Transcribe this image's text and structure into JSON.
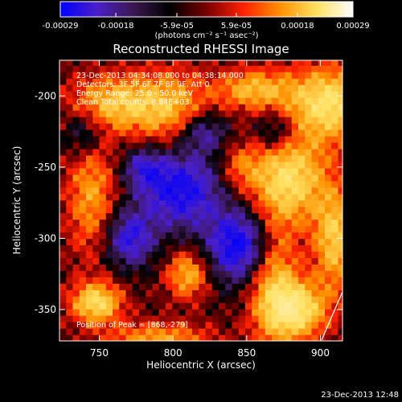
{
  "chart_data": {
    "type": "heatmap",
    "title": "Reconstructed RHESSI Image",
    "xlabel": "Heliocentric X (arcsec)",
    "ylabel": "Heliocentric Y (arcsec)",
    "xlim": [
      723,
      915
    ],
    "ylim": [
      -372,
      -175
    ],
    "xticks": [
      750,
      800,
      850,
      900
    ],
    "yticks": [
      -200,
      -250,
      -300,
      -350
    ],
    "colorbar": {
      "range": [
        -0.00029,
        0.00029
      ],
      "tick_values": [
        -0.00029,
        -0.00018,
        -5.9e-05,
        5.9e-05,
        0.00018,
        0.00029
      ],
      "tick_labels": [
        "-0.00029",
        "-0.00018",
        "-5.9e-05",
        "5.9e-05",
        "0.00018",
        "0.00029"
      ],
      "unit_label": "(photons cm⁻² s⁻¹ asec⁻²)"
    },
    "annotations": [
      "23-Dec-2013 04:34:08.000 to 04:38:14.000",
      "Detectors: 3F 5F 6F 7F 8F 9F, Att 0",
      "Energy Range: 25.0 - 50.0 keV",
      "Clean    Total counts: 8.84E+03"
    ],
    "peak_label": "Position of Peak = [868,-279]",
    "peak": [
      868,
      -279
    ],
    "grid": false,
    "colormap": [
      "#0000ff",
      "#4a1fc8",
      "#3a1850",
      "#000000",
      "#7a0000",
      "#ff2000",
      "#ff9000",
      "#ffe060",
      "#ffffff"
    ],
    "blobs": [
      {
        "x": 906,
        "y": -205,
        "sx": 20,
        "sy": 18,
        "a": 1.0
      },
      {
        "x": 855,
        "y": -195,
        "sx": 18,
        "sy": 10,
        "a": 0.7
      },
      {
        "x": 878,
        "y": -258,
        "sx": 18,
        "sy": 22,
        "a": 0.95
      },
      {
        "x": 910,
        "y": -300,
        "sx": 10,
        "sy": 25,
        "a": 0.8
      },
      {
        "x": 885,
        "y": -350,
        "sx": 14,
        "sy": 14,
        "a": 0.95
      },
      {
        "x": 868,
        "y": -332,
        "sx": 12,
        "sy": 30,
        "a": 0.75
      },
      {
        "x": 748,
        "y": -345,
        "sx": 12,
        "sy": 10,
        "a": 0.95
      },
      {
        "x": 745,
        "y": -270,
        "sx": 12,
        "sy": 30,
        "a": 0.6
      },
      {
        "x": 762,
        "y": -205,
        "sx": 22,
        "sy": 14,
        "a": 0.75
      },
      {
        "x": 800,
        "y": -210,
        "sx": 18,
        "sy": 20,
        "a": 0.6
      },
      {
        "x": 810,
        "y": -325,
        "sx": 10,
        "sy": 12,
        "a": 0.7
      },
      {
        "x": 790,
        "y": -370,
        "sx": 25,
        "sy": 8,
        "a": 0.6
      },
      {
        "x": 845,
        "y": -250,
        "sx": 10,
        "sy": 12,
        "a": 0.4
      },
      {
        "x": 770,
        "y": -300,
        "sx": 12,
        "sy": 14,
        "a": -0.75
      },
      {
        "x": 805,
        "y": -265,
        "sx": 20,
        "sy": 20,
        "a": -0.9
      },
      {
        "x": 845,
        "y": -305,
        "sx": 15,
        "sy": 18,
        "a": -1.0
      },
      {
        "x": 820,
        "y": -225,
        "sx": 12,
        "sy": 10,
        "a": -0.6
      },
      {
        "x": 740,
        "y": -225,
        "sx": 10,
        "sy": 12,
        "a": -0.5
      },
      {
        "x": 870,
        "y": -225,
        "sx": 10,
        "sy": 10,
        "a": -0.5
      },
      {
        "x": 780,
        "y": -250,
        "sx": 10,
        "sy": 10,
        "a": -0.5
      }
    ]
  },
  "footer": {
    "date_stamp": "23-Dec-2013 12:48"
  }
}
